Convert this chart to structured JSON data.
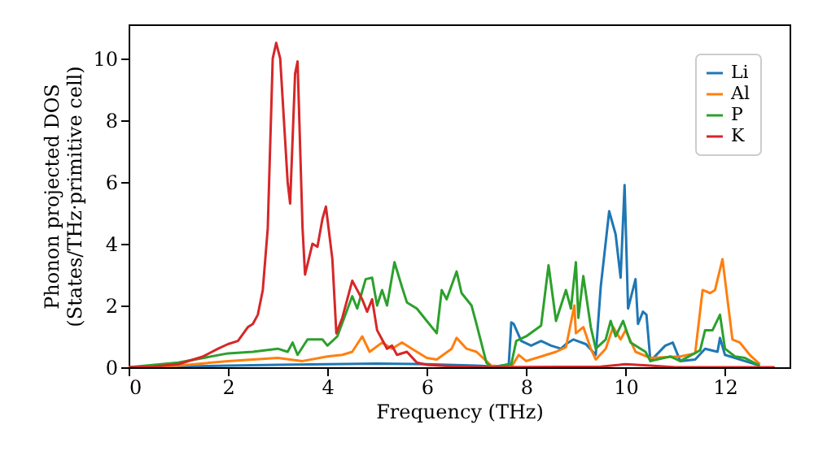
{
  "chart_data": {
    "type": "line",
    "xlabel": "Frequency (THz)",
    "ylabel": "Phonon projected DOS\n(States/THz·primitive cell)",
    "xlim": [
      0,
      13.3
    ],
    "ylim": [
      0,
      11.1
    ],
    "xticks": [
      0,
      2,
      4,
      6,
      8,
      10,
      12
    ],
    "yticks": [
      0,
      2,
      4,
      6,
      8,
      10
    ],
    "grid": false,
    "legend": "top right",
    "marker": "none",
    "line_style": "solid",
    "series": [
      {
        "name": "Li",
        "color": "#1f77b4",
        "x": [
          0,
          1,
          2,
          3,
          4,
          5,
          6,
          7,
          7.4,
          7.65,
          7.7,
          7.75,
          7.9,
          8.1,
          8.3,
          8.5,
          8.7,
          8.8,
          8.95,
          9.2,
          9.4,
          9.5,
          9.67,
          9.8,
          9.9,
          9.98,
          10.05,
          10.2,
          10.25,
          10.35,
          10.42,
          10.5,
          10.8,
          10.95,
          11.1,
          11.4,
          11.6,
          11.85,
          11.9,
          12.0,
          12.4,
          12.7
        ],
        "values": [
          0,
          0.02,
          0.05,
          0.08,
          0.1,
          0.12,
          0.1,
          0.05,
          0.02,
          0.1,
          1.45,
          1.4,
          0.85,
          0.7,
          0.85,
          0.7,
          0.6,
          0.75,
          0.9,
          0.75,
          0.4,
          2.6,
          5.05,
          4.3,
          2.9,
          5.9,
          1.9,
          2.85,
          1.4,
          1.8,
          1.7,
          0.2,
          0.7,
          0.8,
          0.2,
          0.25,
          0.6,
          0.5,
          0.95,
          0.4,
          0.2,
          0.05
        ]
      },
      {
        "name": "Al",
        "color": "#ff7f0e",
        "x": [
          0,
          1,
          2,
          2.5,
          3,
          3.5,
          4,
          4.3,
          4.5,
          4.7,
          4.85,
          5.1,
          5.3,
          5.5,
          5.7,
          6.0,
          6.2,
          6.5,
          6.6,
          6.8,
          7.0,
          7.3,
          7.7,
          7.85,
          8.0,
          8.3,
          8.6,
          8.8,
          8.97,
          9.0,
          9.15,
          9.3,
          9.4,
          9.6,
          9.75,
          9.9,
          10.0,
          10.2,
          10.5,
          11.1,
          11.4,
          11.55,
          11.7,
          11.8,
          11.95,
          12.05,
          12.15,
          12.3,
          12.5,
          12.7
        ],
        "values": [
          0,
          0.05,
          0.2,
          0.25,
          0.3,
          0.2,
          0.35,
          0.4,
          0.5,
          1.0,
          0.5,
          0.8,
          0.6,
          0.8,
          0.6,
          0.3,
          0.25,
          0.6,
          0.95,
          0.6,
          0.5,
          0.05,
          0,
          0.4,
          0.2,
          0.35,
          0.5,
          0.65,
          2.0,
          1.1,
          1.3,
          0.6,
          0.25,
          0.6,
          1.3,
          0.9,
          1.2,
          0.5,
          0.3,
          0.35,
          0.45,
          2.5,
          2.4,
          2.5,
          3.5,
          2.2,
          0.9,
          0.8,
          0.4,
          0.1
        ]
      },
      {
        "name": "P",
        "color": "#2ca02c",
        "x": [
          0,
          1,
          2,
          2.5,
          3,
          3.2,
          3.3,
          3.4,
          3.6,
          3.9,
          4.0,
          4.2,
          4.5,
          4.6,
          4.77,
          4.9,
          5.0,
          5.1,
          5.2,
          5.35,
          5.5,
          5.6,
          5.8,
          6.0,
          6.2,
          6.3,
          6.4,
          6.6,
          6.7,
          6.9,
          7.0,
          7.2,
          7.3,
          7.7,
          7.8,
          8.0,
          8.3,
          8.45,
          8.6,
          8.8,
          8.9,
          9.0,
          9.05,
          9.15,
          9.3,
          9.4,
          9.6,
          9.7,
          9.8,
          9.95,
          10.1,
          10.4,
          10.5,
          10.9,
          11.1,
          11.5,
          11.6,
          11.75,
          11.9,
          12.0,
          12.2,
          12.4,
          12.7
        ],
        "values": [
          0,
          0.15,
          0.45,
          0.5,
          0.6,
          0.5,
          0.8,
          0.4,
          0.9,
          0.9,
          0.7,
          1.0,
          2.3,
          1.9,
          2.85,
          2.9,
          2.0,
          2.5,
          2.0,
          3.4,
          2.6,
          2.1,
          1.9,
          1.5,
          1.1,
          2.5,
          2.2,
          3.1,
          2.4,
          2.0,
          1.4,
          0.15,
          0,
          0.1,
          0.85,
          1.0,
          1.35,
          3.3,
          1.5,
          2.5,
          1.9,
          3.4,
          1.6,
          2.95,
          1.3,
          0.6,
          0.9,
          1.5,
          1.0,
          1.5,
          0.8,
          0.5,
          0.2,
          0.35,
          0.2,
          0.55,
          1.2,
          1.2,
          1.7,
          0.6,
          0.35,
          0.3,
          0.05
        ]
      },
      {
        "name": "K",
        "color": "#d62728",
        "x": [
          0,
          0.5,
          1,
          1.5,
          1.8,
          2.0,
          2.2,
          2.4,
          2.5,
          2.6,
          2.7,
          2.8,
          2.9,
          2.97,
          3.05,
          3.2,
          3.25,
          3.35,
          3.4,
          3.5,
          3.55,
          3.7,
          3.8,
          3.9,
          3.97,
          4.1,
          4.18,
          4.3,
          4.5,
          4.7,
          4.8,
          4.9,
          5.0,
          5.1,
          5.2,
          5.3,
          5.4,
          5.6,
          5.8,
          6.0,
          6.5,
          7.0,
          9.5,
          10.0,
          10.5,
          11.0,
          13.0
        ],
        "values": [
          0,
          0.02,
          0.1,
          0.35,
          0.6,
          0.75,
          0.85,
          1.3,
          1.4,
          1.7,
          2.5,
          4.5,
          10.0,
          10.5,
          10.0,
          6.0,
          5.3,
          9.5,
          9.9,
          4.5,
          3.0,
          4.0,
          3.9,
          4.8,
          5.2,
          3.5,
          1.1,
          1.6,
          2.8,
          2.2,
          1.8,
          2.2,
          1.2,
          0.9,
          0.6,
          0.7,
          0.4,
          0.5,
          0.15,
          0.08,
          0.03,
          0,
          0.02,
          0.1,
          0.05,
          0,
          0
        ]
      }
    ]
  }
}
